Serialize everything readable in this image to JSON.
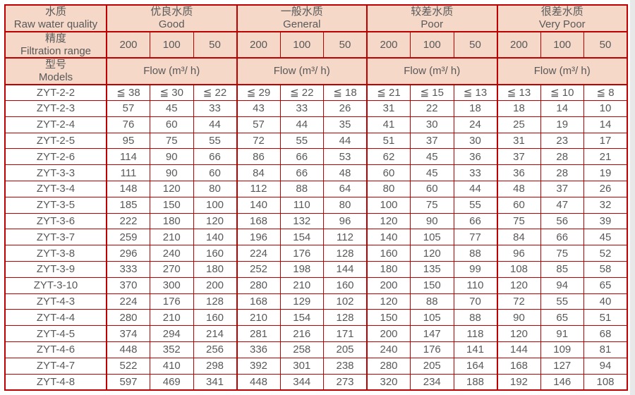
{
  "colors": {
    "border_red": "#bf0000",
    "header_bg": "#f5d8c8",
    "text_gray": "#595959",
    "scroll_strip": "#e8e8e8"
  },
  "header": {
    "raw_water": {
      "zh": "水质",
      "en": "Raw water quality"
    },
    "filtration": {
      "zh": "精度",
      "en": "Filtration range"
    },
    "models": {
      "zh": "型号",
      "en": "Models"
    },
    "groups": [
      {
        "zh": "优良水质",
        "en": "Good"
      },
      {
        "zh": "一般水质",
        "en": "General"
      },
      {
        "zh": "较差水质",
        "en": "Poor"
      },
      {
        "zh": "很差水质",
        "en": "Very Poor"
      }
    ],
    "precisions": [
      "200",
      "100",
      "50",
      "200",
      "100",
      "50",
      "200",
      "100",
      "50",
      "200",
      "100",
      "50"
    ],
    "flow_label": "Flow (m³/ h)"
  },
  "rows": [
    {
      "model": "ZYT-2-2",
      "values": [
        "≦ 38",
        "≦ 30",
        "≦ 22",
        "≦ 29",
        "≦ 22",
        "≦ 18",
        "≦ 21",
        "≦ 15",
        "≦ 13",
        "≦ 13",
        "≦ 10",
        "≦ 8"
      ]
    },
    {
      "model": "ZYT-2-3",
      "values": [
        "57",
        "45",
        "33",
        "43",
        "33",
        "26",
        "31",
        "22",
        "18",
        "18",
        "14",
        "10"
      ]
    },
    {
      "model": "ZYT-2-4",
      "values": [
        "76",
        "60",
        "44",
        "57",
        "44",
        "35",
        "41",
        "30",
        "24",
        "25",
        "19",
        "14"
      ]
    },
    {
      "model": "ZYT-2-5",
      "values": [
        "95",
        "75",
        "55",
        "72",
        "55",
        "44",
        "51",
        "37",
        "30",
        "31",
        "23",
        "17"
      ]
    },
    {
      "model": "ZYT-2-6",
      "values": [
        "114",
        "90",
        "66",
        "86",
        "66",
        "53",
        "62",
        "45",
        "36",
        "37",
        "28",
        "21"
      ]
    },
    {
      "model": "ZYT-3-3",
      "values": [
        "111",
        "90",
        "60",
        "84",
        "66",
        "48",
        "60",
        "45",
        "33",
        "36",
        "28",
        "19"
      ]
    },
    {
      "model": "ZYT-3-4",
      "values": [
        "148",
        "120",
        "80",
        "112",
        "88",
        "64",
        "80",
        "60",
        "44",
        "48",
        "37",
        "26"
      ]
    },
    {
      "model": "ZYT-3-5",
      "values": [
        "185",
        "150",
        "100",
        "140",
        "110",
        "80",
        "100",
        "75",
        "55",
        "60",
        "47",
        "32"
      ]
    },
    {
      "model": "ZYT-3-6",
      "values": [
        "222",
        "180",
        "120",
        "168",
        "132",
        "96",
        "120",
        "90",
        "66",
        "75",
        "56",
        "39"
      ]
    },
    {
      "model": "ZYT-3-7",
      "values": [
        "259",
        "210",
        "140",
        "196",
        "154",
        "112",
        "140",
        "105",
        "77",
        "84",
        "66",
        "45"
      ]
    },
    {
      "model": "ZYT-3-8",
      "values": [
        "296",
        "240",
        "160",
        "224",
        "176",
        "128",
        "160",
        "120",
        "88",
        "96",
        "75",
        "52"
      ]
    },
    {
      "model": "ZYT-3-9",
      "values": [
        "333",
        "270",
        "180",
        "252",
        "198",
        "144",
        "180",
        "135",
        "99",
        "108",
        "85",
        "58"
      ]
    },
    {
      "model": "ZYT-3-10",
      "values": [
        "370",
        "300",
        "200",
        "280",
        "210",
        "160",
        "200",
        "150",
        "110",
        "120",
        "94",
        "65"
      ]
    },
    {
      "model": "ZYT-4-3",
      "values": [
        "224",
        "176",
        "128",
        "168",
        "129",
        "102",
        "120",
        "88",
        "70",
        "72",
        "55",
        "40"
      ]
    },
    {
      "model": "ZYT-4-4",
      "values": [
        "280",
        "210",
        "160",
        "210",
        "154",
        "128",
        "150",
        "105",
        "88",
        "90",
        "65",
        "51"
      ]
    },
    {
      "model": "ZYT-4-5",
      "values": [
        "374",
        "294",
        "214",
        "281",
        "216",
        "171",
        "200",
        "147",
        "118",
        "120",
        "91",
        "68"
      ]
    },
    {
      "model": "ZYT-4-6",
      "values": [
        "448",
        "352",
        "256",
        "336",
        "258",
        "205",
        "240",
        "176",
        "141",
        "144",
        "109",
        "81"
      ]
    },
    {
      "model": "ZYT-4-7",
      "values": [
        "522",
        "410",
        "298",
        "392",
        "301",
        "238",
        "280",
        "205",
        "164",
        "168",
        "127",
        "94"
      ]
    },
    {
      "model": "ZYT-4-8",
      "values": [
        "597",
        "469",
        "341",
        "448",
        "344",
        "273",
        "320",
        "234",
        "188",
        "192",
        "146",
        "108"
      ]
    }
  ]
}
